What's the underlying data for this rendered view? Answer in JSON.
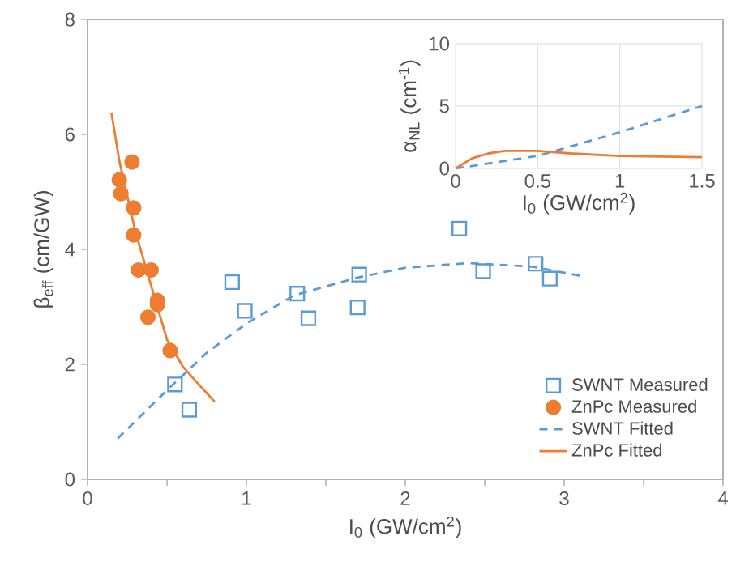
{
  "chart_data": [
    {
      "type": "scatter",
      "xlabel": "I$_{0}$ (GW/cm$^{2}$)",
      "ylabel": "β$_{eff}$ (cm/GW)",
      "xlim": [
        0,
        4
      ],
      "ylim": [
        0,
        8
      ],
      "xticks": [
        0,
        {
          "value": 0.5,
          "label": null
        },
        1,
        {
          "value": 1.5,
          "label": null
        },
        2,
        {
          "value": 2.5,
          "label": null
        },
        3,
        {
          "value": 3.5,
          "label": null
        },
        4
      ],
      "yticks": [
        0,
        2,
        4,
        6,
        8
      ],
      "grid": false,
      "legend": "bottom right",
      "series": [
        {
          "name": "SWNT Measured",
          "marker": "square",
          "color": "#5b9bd5",
          "x": [
            0.55,
            0.64,
            0.91,
            0.99,
            1.32,
            1.39,
            1.71,
            1.7,
            2.34,
            2.49,
            2.82,
            2.91
          ],
          "values": [
            1.65,
            1.21,
            3.43,
            2.93,
            3.23,
            2.8,
            3.56,
            2.99,
            4.36,
            3.62,
            3.75,
            3.49
          ]
        },
        {
          "name": "ZnPc Measured",
          "marker": "circle",
          "color": "#ed7d31",
          "x": [
            0.28,
            0.2,
            0.21,
            0.29,
            0.29,
            0.32,
            0.4,
            0.44,
            0.44,
            0.38,
            0.52
          ],
          "values": [
            5.52,
            5.21,
            4.97,
            4.72,
            4.25,
            3.64,
            3.64,
            3.11,
            3.04,
            2.82,
            2.24
          ]
        },
        {
          "name": "SWNT Fitted",
          "type": "line",
          "line_style": "dashed",
          "color": "#5b9bd5",
          "x": [
            0.19,
            0.5,
            0.75,
            1.0,
            1.3,
            1.7,
            2.0,
            2.4,
            2.8,
            3.1
          ],
          "values": [
            0.71,
            1.55,
            2.2,
            2.71,
            3.2,
            3.51,
            3.68,
            3.76,
            3.7,
            3.54
          ]
        },
        {
          "name": "ZnPc Fitted",
          "type": "line",
          "line_style": "solid",
          "color": "#ed7d31",
          "x": [
            0.15,
            0.2,
            0.3,
            0.4,
            0.5,
            0.6,
            0.7,
            0.8
          ],
          "values": [
            6.38,
            5.54,
            4.32,
            3.37,
            2.43,
            1.96,
            1.65,
            1.35
          ]
        }
      ]
    },
    {
      "type": "line",
      "xlabel": "I$_{0}$ (GW/cm$^{2}$)",
      "ylabel": "α$_{NL}$ (cm$^{-1}$)",
      "xlim": [
        0,
        1.5
      ],
      "ylim": [
        0,
        10
      ],
      "xticks": [
        0,
        0.5,
        1,
        1.5
      ],
      "yticks": [
        0,
        5,
        10
      ],
      "grid": true,
      "series": [
        {
          "line_style": "dashed",
          "color": "#5b9bd5",
          "x": [
            0,
            0.5,
            1.0,
            1.5
          ],
          "values": [
            0,
            1.0,
            2.9,
            5.0
          ]
        },
        {
          "line_style": "solid",
          "color": "#ed7d31",
          "x": [
            0,
            0.1,
            0.2,
            0.3,
            0.5,
            0.7,
            1.0,
            1.5
          ],
          "values": [
            0,
            0.8,
            1.2,
            1.4,
            1.4,
            1.2,
            1.0,
            0.9
          ]
        }
      ]
    }
  ]
}
